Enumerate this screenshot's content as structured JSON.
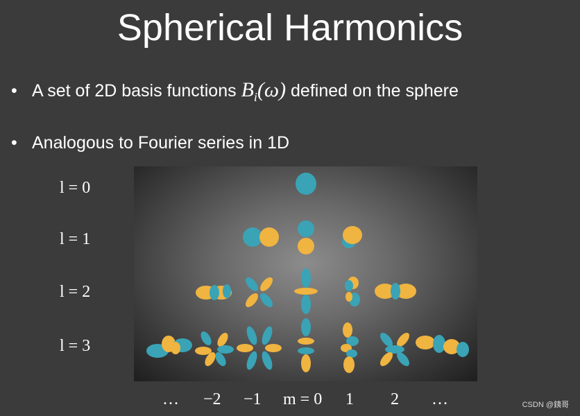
{
  "slide": {
    "title": "Spherical Harmonics",
    "bullets": [
      {
        "text_before": "A set of 2D basis functions ",
        "math_base": "B",
        "math_sub": "i",
        "math_arg": "(ω)",
        "text_after": " defined on the sphere"
      },
      {
        "text": "Analogous to Fourier series in 1D"
      }
    ],
    "bullet_symbol": "•"
  },
  "figure": {
    "row_labels": [
      "l = 0",
      "l = 1",
      "l = 2",
      "l = 3"
    ],
    "column_labels": [
      "…",
      "−2",
      "−1",
      "m = 0",
      "1",
      "2",
      "…"
    ],
    "colors": {
      "positive": "#f0b440",
      "negative": "#3aa3b6"
    }
  },
  "watermark": "CSDN @銕哥"
}
